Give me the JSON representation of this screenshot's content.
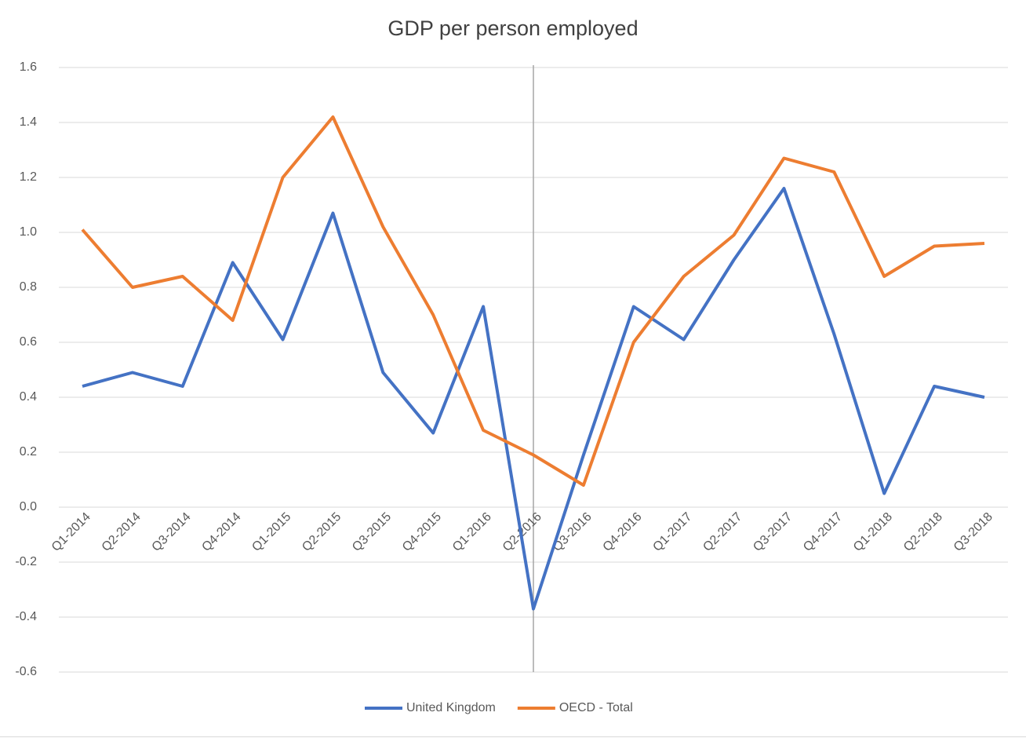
{
  "chart_data": {
    "type": "line",
    "title": "GDP per person employed",
    "categories": [
      "Q1-2014",
      "Q2-2014",
      "Q3-2014",
      "Q4-2014",
      "Q1-2015",
      "Q2-2015",
      "Q3-2015",
      "Q4-2015",
      "Q1-2016",
      "Q2-2016",
      "Q3-2016",
      "Q4-2016",
      "Q1-2017",
      "Q2-2017",
      "Q3-2017",
      "Q4-2017",
      "Q1-2018",
      "Q2-2018",
      "Q3-2018"
    ],
    "series": [
      {
        "name": "United Kingdom",
        "color": "#4472c4",
        "values": [
          0.44,
          0.49,
          0.44,
          0.89,
          0.61,
          1.07,
          0.49,
          0.27,
          0.73,
          -0.37,
          0.19,
          0.73,
          0.61,
          0.9,
          1.16,
          0.63,
          0.05,
          0.44,
          0.4
        ]
      },
      {
        "name": "OECD - Total",
        "color": "#ed7d31",
        "values": [
          1.01,
          0.8,
          0.84,
          0.68,
          1.2,
          1.42,
          1.02,
          0.7,
          0.28,
          0.19,
          0.08,
          0.6,
          0.84,
          0.99,
          1.27,
          1.22,
          0.84,
          0.95,
          0.96
        ]
      }
    ],
    "ylim": [
      -0.6,
      1.6
    ],
    "yticks": [
      -0.6,
      -0.4,
      -0.2,
      {
        "value": 0,
        "label": "0.0"
      },
      0.2,
      0.4,
      0.6,
      0.8,
      {
        "value": 1,
        "label": "1.0"
      },
      1.2,
      1.4,
      1.6
    ],
    "grid": true,
    "legend": "bottom",
    "reference_line": "Q2-2016"
  }
}
